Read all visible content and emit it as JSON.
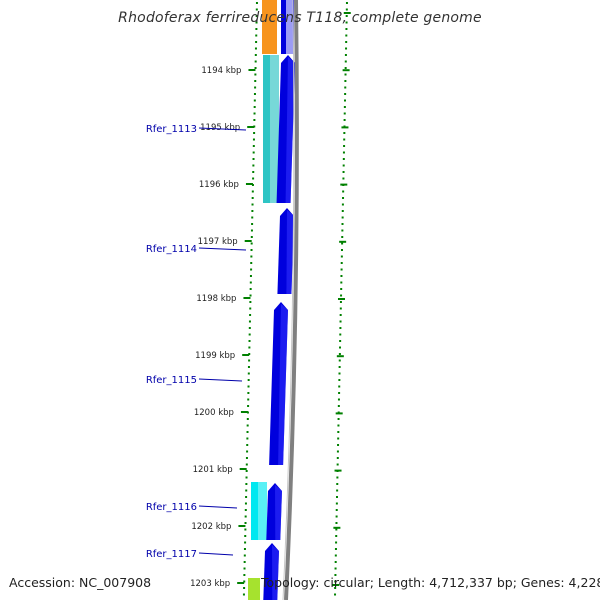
{
  "title": "Rhodoferax ferrireducens T118, complete genome",
  "footer": {
    "accession": "Accession: NC_007908",
    "topology": "Topology: circular; Length: 4,712,337 bp; Genes: 4,228"
  },
  "ticks": [
    {
      "label": "1194 kbp"
    },
    {
      "label": "1195 kbp"
    },
    {
      "label": "1196 kbp"
    },
    {
      "label": "1197 kbp"
    },
    {
      "label": "1198 kbp"
    },
    {
      "label": "1199 kbp"
    },
    {
      "label": "1200 kbp"
    },
    {
      "label": "1201 kbp"
    },
    {
      "label": "1202 kbp"
    },
    {
      "label": "1203 kbp"
    }
  ],
  "genes": [
    {
      "name": "Rfer_1113",
      "strand": "+",
      "cog_color": "#2ec4c4"
    },
    {
      "name": "Rfer_1114",
      "strand": "+",
      "cog_color": "#ffffff"
    },
    {
      "name": "Rfer_1115",
      "strand": "+",
      "cog_color": "#ffffff"
    },
    {
      "name": "Rfer_1116",
      "strand": "+",
      "cog_color": "#00e8f0"
    },
    {
      "name": "Rfer_1117",
      "strand": "+",
      "cog_color": "#ffffff"
    }
  ],
  "colors": {
    "cds": "#0000dd",
    "label": "#0000aa",
    "tick": "#008000",
    "backbone": "#808080"
  }
}
